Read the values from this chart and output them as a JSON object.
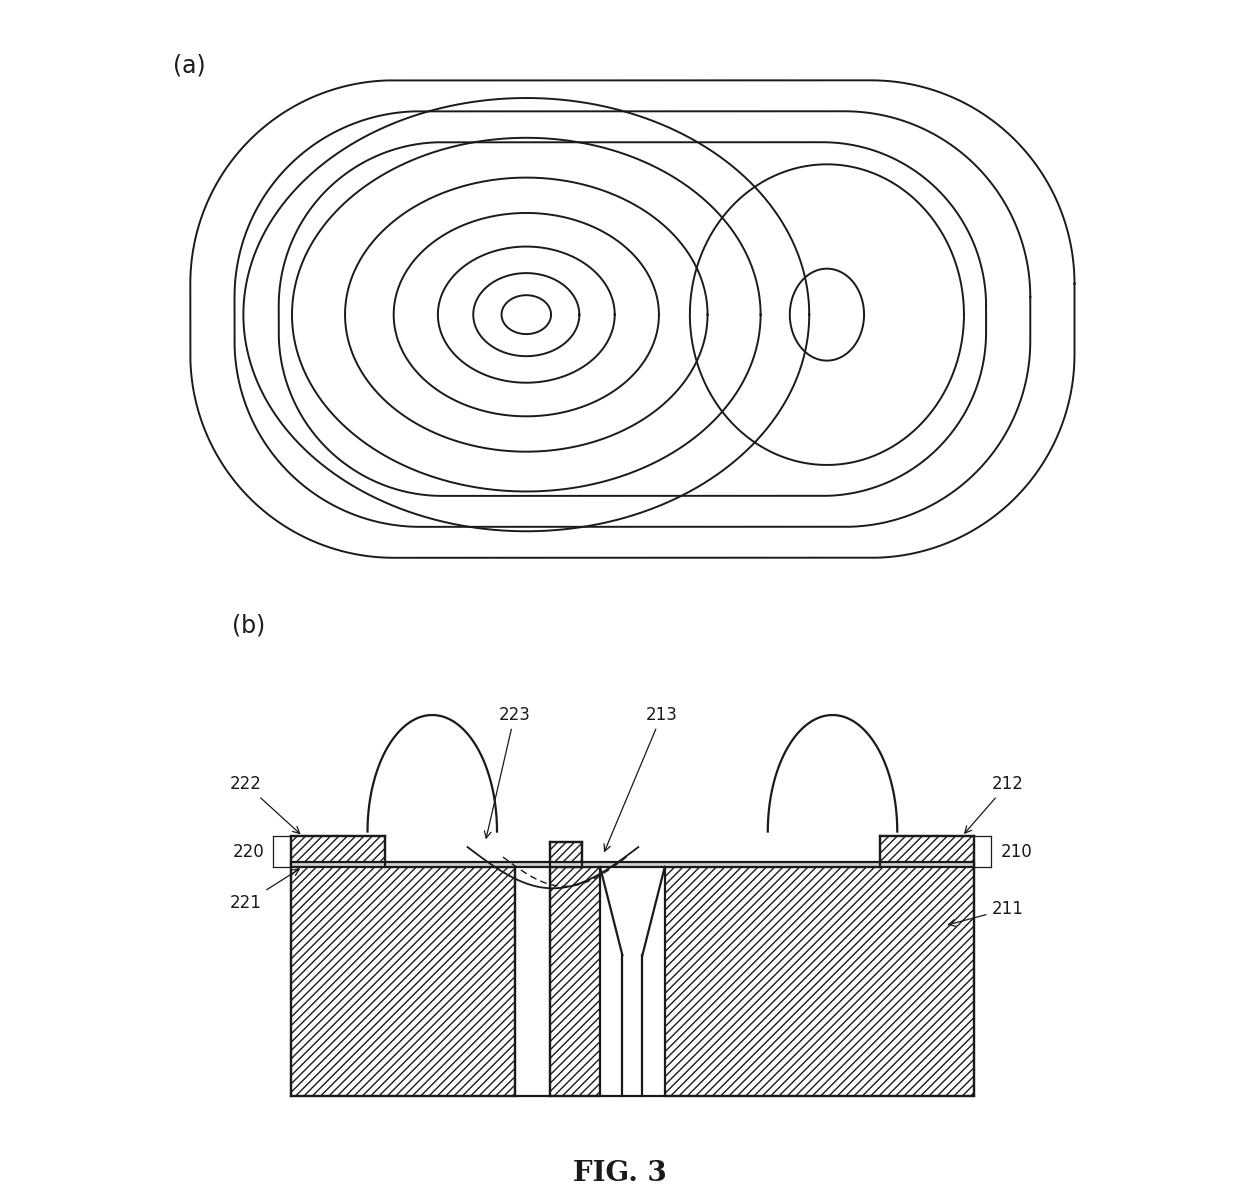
{
  "bg_color": "#ffffff",
  "line_color": "#1a1a1a",
  "label_a": "(a)",
  "label_b": "(b)",
  "fig_title": "FIG. 3"
}
